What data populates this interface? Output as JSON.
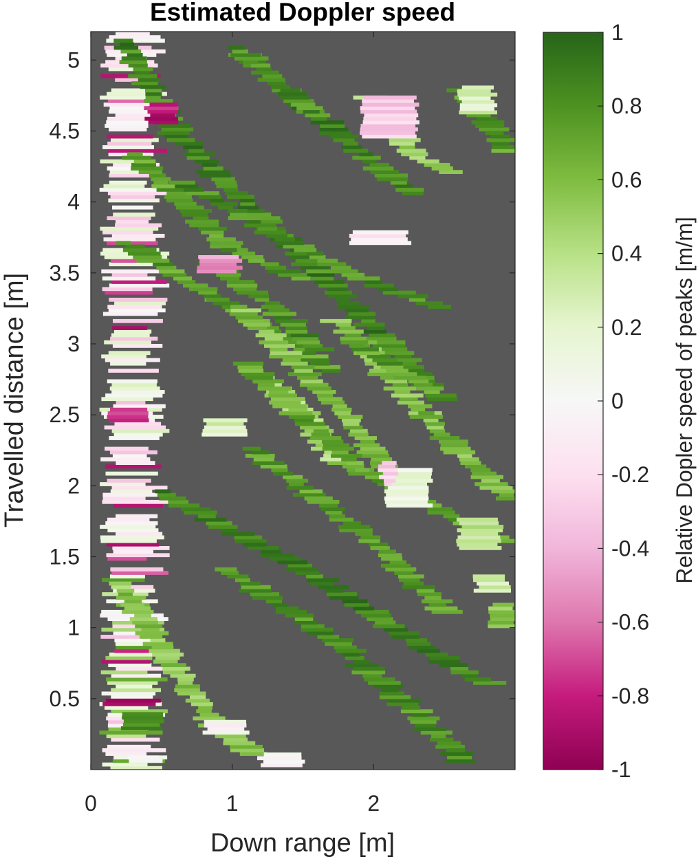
{
  "chart_data": {
    "type": "heatmap",
    "title": "Estimated Doppler speed",
    "xlabel": "Down range [m]",
    "ylabel": "Travelled distance [m]",
    "colorbar_label": "Relative Dopler speed of peaks [m/m]",
    "xlim": [
      0,
      3.0
    ],
    "ylim": [
      0,
      5.2
    ],
    "clim": [
      -1,
      1
    ],
    "x_ticks": [
      0,
      1,
      2
    ],
    "x_tick_labels": [
      "0",
      "1",
      "2"
    ],
    "y_ticks": [
      0.5,
      1,
      1.5,
      2,
      2.5,
      3,
      3.5,
      4,
      4.5,
      5
    ],
    "y_tick_labels": [
      "0.5",
      "1",
      "1.5",
      "2",
      "2.5",
      "3",
      "3.5",
      "4",
      "4.5",
      "5"
    ],
    "colorbar_ticks": [
      -1,
      -0.8,
      -0.6,
      -0.4,
      -0.2,
      0,
      0.2,
      0.4,
      0.6,
      0.8,
      1
    ],
    "colorbar_tick_labels": [
      "-1",
      "-0.8",
      "-0.6",
      "-0.4",
      "-0.2",
      "0",
      "0.2",
      "0.4",
      "0.6",
      "0.8",
      "1"
    ],
    "colormap": "PiYG",
    "background_color": "#585858",
    "tracks": [
      {
        "points": [
          [
            0.22,
            5.15
          ],
          [
            0.62,
            4.45
          ],
          [
            1.6,
            3.5
          ],
          [
            2.4,
            2.7
          ]
        ],
        "value": 0.85
      },
      {
        "points": [
          [
            0.28,
            4.35
          ],
          [
            1.0,
            3.65
          ],
          [
            1.5,
            3.45
          ]
        ],
        "value": 0.75
      },
      {
        "points": [
          [
            0.6,
            4.15
          ],
          [
            1.8,
            3.5
          ],
          [
            2.45,
            3.25
          ]
        ],
        "value": 0.8
      },
      {
        "points": [
          [
            1.05,
            5.05
          ],
          [
            2.2,
            4.1
          ],
          [
            2.3,
            4.05
          ]
        ],
        "value": 0.85
      },
      {
        "points": [
          [
            0.22,
            3.72
          ],
          [
            0.9,
            3.3
          ],
          [
            1.4,
            3.0
          ],
          [
            1.7,
            2.8
          ]
        ],
        "value": 0.75
      },
      {
        "points": [
          [
            1.05,
            3.25
          ],
          [
            1.8,
            2.5
          ],
          [
            2.1,
            2.1
          ],
          [
            2.2,
            1.95
          ]
        ],
        "value": 0.6
      },
      {
        "points": [
          [
            1.15,
            2.8
          ],
          [
            1.5,
            2.5
          ],
          [
            1.75,
            2.15
          ]
        ],
        "value": 0.45
      },
      {
        "points": [
          [
            1.75,
            3.15
          ],
          [
            2.35,
            2.5
          ],
          [
            2.95,
            1.9
          ]
        ],
        "value": 0.6
      },
      {
        "points": [
          [
            1.1,
            2.85
          ],
          [
            1.9,
            2.1
          ],
          [
            2.9,
            1.6
          ]
        ],
        "value": 0.7
      },
      {
        "points": [
          [
            0.5,
            1.95
          ],
          [
            1.5,
            1.4
          ],
          [
            2.6,
            0.7
          ],
          [
            2.8,
            0.6
          ]
        ],
        "value": 0.85
      },
      {
        "points": [
          [
            0.95,
            1.4
          ],
          [
            1.8,
            0.85
          ],
          [
            2.55,
            0.15
          ],
          [
            2.62,
            0.05
          ]
        ],
        "value": 0.8
      },
      {
        "points": [
          [
            0.22,
            1.3
          ],
          [
            0.55,
            0.75
          ],
          [
            0.9,
            0.3
          ],
          [
            1.15,
            0.1
          ]
        ],
        "value": 0.55
      },
      {
        "points": [
          [
            1.95,
            4.75
          ],
          [
            2.3,
            4.3
          ],
          [
            2.55,
            4.2
          ]
        ],
        "value": 0.5
      },
      {
        "points": [
          [
            2.6,
            4.8
          ],
          [
            2.85,
            4.5
          ],
          [
            2.95,
            4.35
          ]
        ],
        "value": 0.75
      },
      {
        "points": [
          [
            1.15,
            2.25
          ],
          [
            1.6,
            1.9
          ],
          [
            2.05,
            1.55
          ],
          [
            2.5,
            1.1
          ]
        ],
        "value": 0.75
      },
      {
        "points": [
          [
            0.85,
            3.55
          ],
          [
            1.3,
            3.25
          ],
          [
            1.6,
            2.95
          ]
        ],
        "value": 0.8
      },
      {
        "points": [
          [
            1.85,
            3.0
          ],
          [
            2.5,
            2.6
          ]
        ],
        "value": 0.75
      },
      {
        "points": [
          [
            1.0,
            5.1
          ],
          [
            1.6,
            4.6
          ]
        ],
        "value": 0.8
      }
    ],
    "central_band": {
      "x_range": [
        0.12,
        0.52
      ],
      "y_range": [
        0.0,
        5.2
      ],
      "value_range": [
        -0.9,
        0.3
      ]
    },
    "blobs": [
      {
        "x": [
          1.92,
          2.3
        ],
        "y": [
          4.45,
          4.75
        ],
        "value": -0.3
      },
      {
        "x": [
          2.6,
          2.85
        ],
        "y": [
          4.62,
          4.82
        ],
        "value": 0.25
      },
      {
        "x": [
          2.1,
          2.4
        ],
        "y": [
          1.85,
          2.1
        ],
        "value": 0.1
      },
      {
        "x": [
          2.6,
          2.9
        ],
        "y": [
          1.55,
          1.75
        ],
        "value": 0.35
      },
      {
        "x": [
          2.72,
          2.95
        ],
        "y": [
          1.25,
          1.35
        ],
        "value": 0.3
      },
      {
        "x": [
          2.82,
          3.0
        ],
        "y": [
          1.0,
          1.15
        ],
        "value": 0.55
      },
      {
        "x": [
          0.75,
          1.05
        ],
        "y": [
          3.5,
          3.6
        ],
        "value": -0.5
      },
      {
        "x": [
          1.85,
          2.25
        ],
        "y": [
          3.7,
          3.8
        ],
        "value": -0.1
      },
      {
        "x": [
          0.4,
          0.6
        ],
        "y": [
          4.55,
          4.7
        ],
        "value": -0.85
      },
      {
        "x": [
          0.12,
          0.42
        ],
        "y": [
          2.45,
          2.55
        ],
        "value": -0.8
      },
      {
        "x": [
          0.1,
          0.48
        ],
        "y": [
          0.45,
          0.5
        ],
        "value": -0.85
      },
      {
        "x": [
          0.8,
          1.1
        ],
        "y": [
          0.25,
          0.35
        ],
        "value": 0.0
      },
      {
        "x": [
          1.2,
          1.5
        ],
        "y": [
          0.02,
          0.12
        ],
        "value": 0.0
      },
      {
        "x": [
          0.22,
          0.5
        ],
        "y": [
          0.28,
          0.4
        ],
        "value": 0.8
      },
      {
        "x": [
          0.25,
          0.5
        ],
        "y": [
          0.05,
          0.1
        ],
        "value": 0.05
      },
      {
        "x": [
          0.8,
          1.1
        ],
        "y": [
          2.35,
          2.45
        ],
        "value": 0.25
      },
      {
        "x": [
          2.05,
          2.15
        ],
        "y": [
          2.0,
          2.15
        ],
        "value": -0.3
      }
    ]
  }
}
